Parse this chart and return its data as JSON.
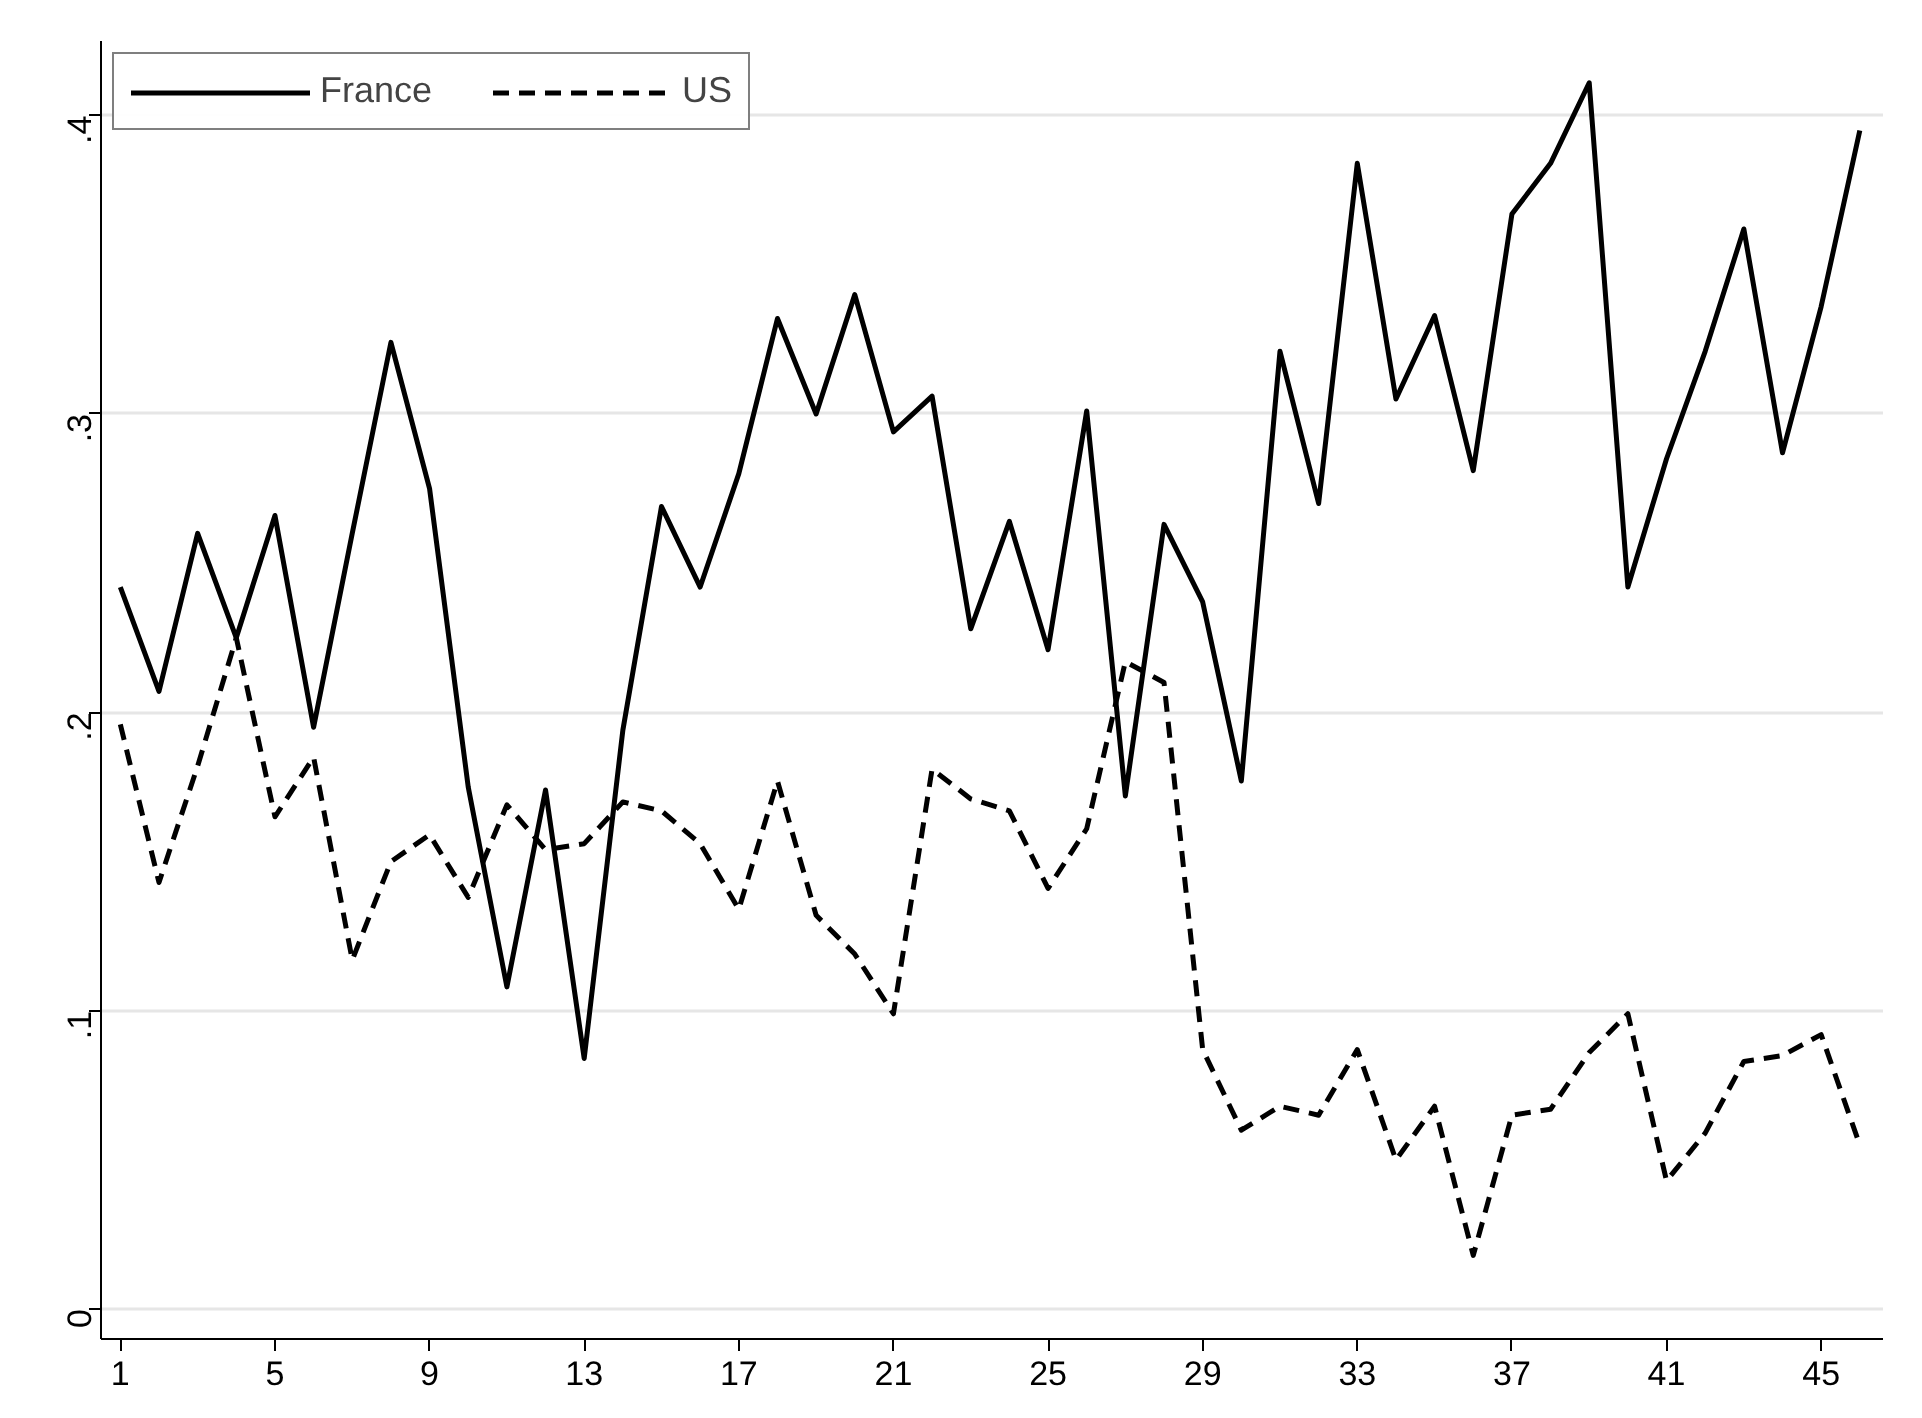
{
  "chart_data": {
    "type": "line",
    "x": [
      1,
      2,
      3,
      4,
      5,
      6,
      7,
      8,
      9,
      10,
      11,
      12,
      13,
      14,
      15,
      16,
      17,
      18,
      19,
      20,
      21,
      22,
      23,
      24,
      25,
      26,
      27,
      28,
      29,
      30,
      31,
      32,
      33,
      34,
      35,
      36,
      37,
      38,
      39,
      40,
      41,
      42,
      43,
      44,
      45,
      46
    ],
    "series": [
      {
        "name": "France",
        "color": "#000000",
        "line_style": "solid",
        "values": [
          0.242,
          0.207,
          0.26,
          0.225,
          0.266,
          0.195,
          0.26,
          0.324,
          0.275,
          0.175,
          0.108,
          0.174,
          0.084,
          0.194,
          0.269,
          0.242,
          0.28,
          0.332,
          0.3,
          0.34,
          0.294,
          0.306,
          0.228,
          0.264,
          0.221,
          0.301,
          0.172,
          0.263,
          0.237,
          0.177,
          0.321,
          0.27,
          0.384,
          0.305,
          0.333,
          0.281,
          0.367,
          0.384,
          0.411,
          0.242,
          0.285,
          0.321,
          0.362,
          0.287,
          0.336,
          0.395
        ]
      },
      {
        "name": "US",
        "color": "#000000",
        "line_style": "dashed",
        "values": [
          0.196,
          0.143,
          0.182,
          0.225,
          0.165,
          0.185,
          0.117,
          0.15,
          0.159,
          0.138,
          0.169,
          0.154,
          0.156,
          0.17,
          0.167,
          0.156,
          0.134,
          0.177,
          0.132,
          0.119,
          0.099,
          0.181,
          0.171,
          0.167,
          0.141,
          0.161,
          0.217,
          0.21,
          0.087,
          0.06,
          0.068,
          0.065,
          0.087,
          0.05,
          0.068,
          0.018,
          0.065,
          0.067,
          0.086,
          0.099,
          0.043,
          0.059,
          0.083,
          0.085,
          0.092,
          0.055
        ]
      }
    ],
    "xlim": [
      0.5,
      46.6
    ],
    "xticks": [
      1,
      5,
      9,
      13,
      17,
      21,
      25,
      29,
      33,
      37,
      41,
      45
    ],
    "ylim": [
      -0.01,
      0.425
    ],
    "yticks": [
      {
        "value": 0,
        "label": "0"
      },
      {
        "value": 0.1,
        "label": ".1"
      },
      {
        "value": 0.2,
        "label": ".2"
      },
      {
        "value": 0.3,
        "label": ".3"
      },
      {
        "value": 0.4,
        "label": ".4"
      }
    ],
    "grid": "y",
    "legend": "top left"
  }
}
